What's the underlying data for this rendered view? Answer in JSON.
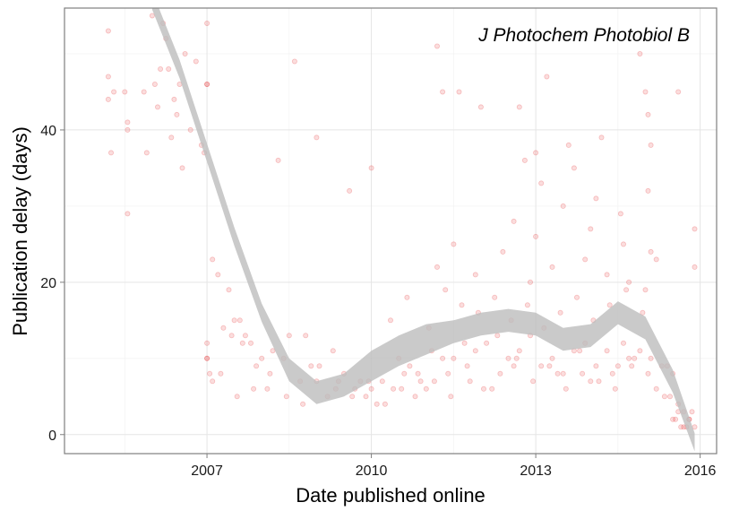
{
  "chart_data": {
    "type": "scatter",
    "annotation": "J Photochem Photobiol B",
    "xlabel": "Date published online",
    "ylabel": "Publication delay (days)",
    "xlim": [
      2004.4,
      2016.3
    ],
    "ylim": [
      -2.5,
      56
    ],
    "x_ticks": [
      2007,
      2010,
      2013,
      2016
    ],
    "y_ticks": [
      0,
      20,
      40
    ],
    "grid": true,
    "point_color": "#e31a1c",
    "point_alpha": 0.15,
    "smooth_color": "#bdbdbd",
    "smooth_fit": {
      "x": [
        2006.0,
        2006.5,
        2007.0,
        2007.5,
        2008.0,
        2008.5,
        2009.0,
        2009.5,
        2010.0,
        2010.5,
        2011.0,
        2011.5,
        2012.0,
        2012.5,
        2013.0,
        2013.5,
        2014.0,
        2014.5,
        2015.0,
        2015.5,
        2015.9
      ],
      "y": [
        57,
        48,
        37,
        26,
        16,
        8.5,
        5.5,
        6.5,
        9.0,
        11.0,
        12.5,
        13.5,
        14.5,
        15.0,
        14.5,
        12.5,
        13.0,
        16.0,
        14.0,
        7.0,
        -1.0
      ],
      "half_width": [
        1.2,
        1.2,
        1.2,
        1.2,
        1.2,
        1.5,
        1.5,
        1.5,
        2.0,
        2.0,
        2.0,
        1.5,
        1.5,
        1.5,
        1.5,
        1.5,
        1.5,
        1.5,
        1.5,
        1.5,
        1.2
      ]
    },
    "series": [
      {
        "x": [
          2005.2,
          2005.2,
          2005.2,
          2005.25,
          2005.3,
          2005.5,
          2005.55,
          2005.55,
          2005.9,
          2006.05,
          2006.1,
          2006.2,
          2006.3,
          2006.4,
          2006.5,
          2006.6,
          2006.7,
          2006.9,
          2007.0,
          2006.15,
          2006.25,
          2006.45,
          2006.55,
          2006.8,
          2006.95,
          2007.0,
          2006.35,
          2005.85,
          2006.0,
          2007.0,
          2005.55,
          2008.3,
          2008.6,
          2009.0,
          2009.6,
          2010.0,
          2011.2,
          2011.3,
          2011.6,
          2012.0,
          2013.0,
          2013.6,
          2014.2,
          2014.9,
          2015.0,
          2015.05,
          2015.1,
          2015.6,
          2015.9,
          2015.9,
          2012.7,
          2012.8,
          2013.2,
          2007.1,
          2007.2,
          2007.4,
          2007.5,
          2007.6,
          2007.7,
          2007.8,
          2008.0,
          2008.2,
          2008.5,
          2008.8,
          2009.0,
          2009.3,
          2009.5,
          2009.8,
          2010.0,
          2010.2,
          2010.5,
          2010.7,
          2010.9,
          2011.1,
          2011.3,
          2011.5,
          2011.7,
          2011.9,
          2012.1,
          2012.3,
          2012.5,
          2012.7,
          2012.9,
          2013.1,
          2013.3,
          2013.5,
          2013.7,
          2013.9,
          2014.1,
          2014.3,
          2014.5,
          2014.7,
          2014.9,
          2015.1,
          2015.3,
          2015.5,
          2015.6,
          2015.7,
          2015.8,
          2015.85,
          2007.3,
          2007.45,
          2007.65,
          2007.9,
          2008.1,
          2008.4,
          2008.7,
          2008.9,
          2009.2,
          2009.4,
          2009.7,
          2009.9,
          2010.1,
          2010.4,
          2010.6,
          2010.8,
          2011.0,
          2011.4,
          2011.8,
          2012.2,
          2012.6,
          2013.4,
          2013.8,
          2014.0,
          2014.4,
          2014.6,
          2014.8,
          2015.2,
          2015.4,
          2015.45,
          2015.55,
          2015.65,
          2015.75,
          2007.25,
          2007.55,
          2007.85,
          2008.15,
          2008.45,
          2008.75,
          2009.05,
          2009.35,
          2009.65,
          2009.95,
          2010.25,
          2010.55,
          2010.85,
          2011.15,
          2011.45,
          2011.75,
          2012.05,
          2012.35,
          2012.65,
          2012.95,
          2013.25,
          2013.55,
          2013.85,
          2014.15,
          2014.45,
          2014.75,
          2015.05,
          2015.35,
          2015.5,
          2015.6,
          2015.7,
          2015.8,
          2015.9,
          2010.35,
          2010.65,
          2011.05,
          2011.35,
          2011.65,
          2011.95,
          2012.25,
          2012.55,
          2012.85,
          2013.15,
          2013.45,
          2013.75,
          2014.05,
          2014.35,
          2014.65,
          2014.95,
          2011.2,
          2011.5,
          2011.9,
          2012.4,
          2012.9,
          2013.3,
          2013.9,
          2014.3,
          2014.7,
          2015.0,
          2015.2,
          2012.6,
          2013.0,
          2013.5,
          2014.0,
          2014.6,
          2015.1,
          2013.1,
          2013.7,
          2014.1,
          2014.55,
          2015.05,
          2007.0,
          2007.0,
          2007.0,
          2007.05,
          2007.1
        ],
        "y": [
          53,
          47,
          44,
          37,
          45,
          45,
          40,
          41,
          37,
          46,
          43,
          54,
          48,
          44,
          46,
          50,
          40,
          38,
          54,
          48,
          52,
          42,
          35,
          49,
          37,
          46,
          39,
          45,
          55,
          46,
          29,
          36,
          49,
          39,
          32,
          35,
          51,
          45,
          45,
          43,
          37,
          38,
          39,
          50,
          45,
          42,
          38,
          45,
          22,
          27,
          43,
          36,
          47,
          23,
          21,
          19,
          15,
          15,
          13,
          12,
          10,
          11,
          13,
          13,
          7,
          11,
          8,
          7,
          6,
          7,
          10,
          9,
          7,
          11,
          10,
          10,
          12,
          11,
          12,
          13,
          10,
          11,
          13,
          9,
          10,
          8,
          11,
          12,
          9,
          11,
          9,
          10,
          11,
          10,
          9,
          8,
          4,
          3,
          2,
          3,
          14,
          13,
          12,
          9,
          6,
          10,
          7,
          9,
          5,
          7,
          6,
          5,
          4,
          6,
          8,
          5,
          6,
          8,
          7,
          6,
          9,
          8,
          11,
          7,
          8,
          12,
          10,
          6,
          9,
          5,
          2,
          1,
          1,
          8,
          5,
          6,
          8,
          5,
          4,
          9,
          6,
          5,
          7,
          4,
          6,
          8,
          7,
          5,
          9,
          6,
          8,
          10,
          7,
          9,
          6,
          8,
          7,
          6,
          9,
          8,
          5,
          2,
          3,
          1,
          2,
          1,
          15,
          18,
          14,
          19,
          17,
          16,
          18,
          15,
          17,
          14,
          16,
          18,
          15,
          17,
          19,
          16,
          22,
          25,
          21,
          24,
          20,
          22,
          23,
          21,
          20,
          19,
          23,
          28,
          26,
          30,
          27,
          25,
          24,
          33,
          35,
          31,
          29,
          32,
          10,
          12,
          10,
          8,
          7
        ]
      }
    ]
  }
}
